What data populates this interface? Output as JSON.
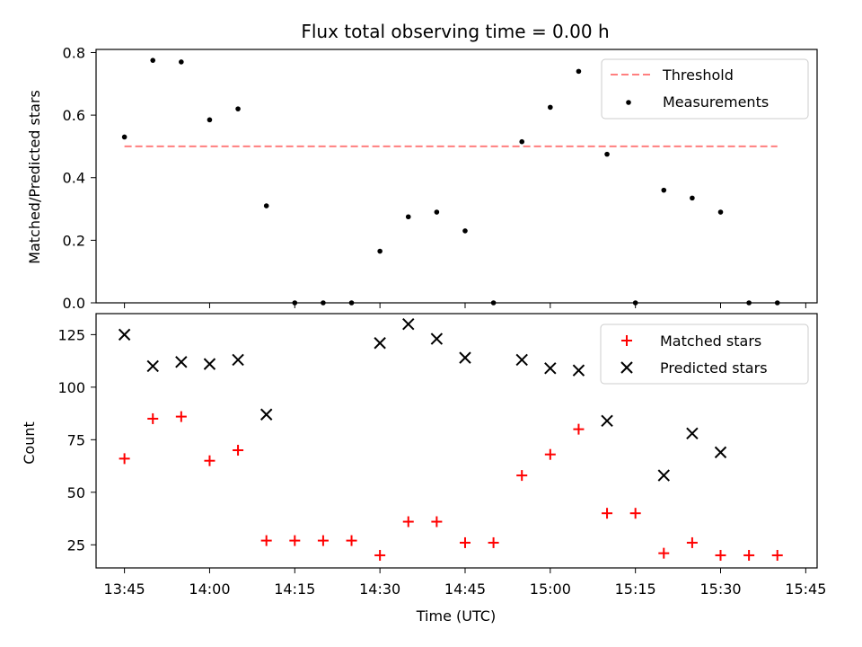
{
  "colors": {
    "threshold": "#ff7f7f",
    "measurements": "#000000",
    "matched": "#ff0000",
    "predicted": "#000000"
  },
  "chart_data": [
    {
      "type": "scatter",
      "title": "Flux total observing time = 0.00 h",
      "xlabel": "",
      "ylabel": "Matched/Predicted stars",
      "xlim": [
        "13:40",
        "15:47"
      ],
      "ylim": [
        0,
        0.81
      ],
      "grid": false,
      "legend_position": "top-right",
      "xtick_labels_visible": false,
      "yticks": [
        0.0,
        0.2,
        0.4,
        0.6,
        0.8
      ],
      "ytick_labels": [
        "0.0",
        "0.2",
        "0.4",
        "0.6",
        "0.8"
      ],
      "series": [
        {
          "name": "Threshold",
          "kind": "line",
          "style": "dashed",
          "color": "#ff7f7f",
          "points": [
            {
              "x": "13:45",
              "y": 0.5
            },
            {
              "x": "15:40",
              "y": 0.5
            }
          ]
        },
        {
          "name": "Measurements",
          "kind": "scatter",
          "marker": "dot",
          "color": "#000000",
          "points": [
            {
              "x": "13:45",
              "y": 0.53
            },
            {
              "x": "13:50",
              "y": 0.775
            },
            {
              "x": "13:55",
              "y": 0.77
            },
            {
              "x": "14:00",
              "y": 0.585
            },
            {
              "x": "14:05",
              "y": 0.62
            },
            {
              "x": "14:10",
              "y": 0.31
            },
            {
              "x": "14:15",
              "y": 0.0
            },
            {
              "x": "14:20",
              "y": 0.0
            },
            {
              "x": "14:25",
              "y": 0.0
            },
            {
              "x": "14:30",
              "y": 0.165
            },
            {
              "x": "14:35",
              "y": 0.275
            },
            {
              "x": "14:40",
              "y": 0.29
            },
            {
              "x": "14:45",
              "y": 0.23
            },
            {
              "x": "14:50",
              "y": 0.0
            },
            {
              "x": "14:55",
              "y": 0.515
            },
            {
              "x": "15:00",
              "y": 0.625
            },
            {
              "x": "15:05",
              "y": 0.74
            },
            {
              "x": "15:10",
              "y": 0.475
            },
            {
              "x": "15:15",
              "y": 0.0
            },
            {
              "x": "15:20",
              "y": 0.36
            },
            {
              "x": "15:25",
              "y": 0.335
            },
            {
              "x": "15:30",
              "y": 0.29
            },
            {
              "x": "15:35",
              "y": 0.0
            },
            {
              "x": "15:40",
              "y": 0.0
            }
          ]
        }
      ]
    },
    {
      "type": "scatter",
      "title": "",
      "xlabel": "Time (UTC)",
      "ylabel": "Count",
      "xlim": [
        "13:40",
        "15:47"
      ],
      "ylim": [
        14,
        135
      ],
      "grid": false,
      "legend_position": "top-right",
      "xticks": [
        "13:45",
        "14:00",
        "14:15",
        "14:30",
        "14:45",
        "15:00",
        "15:15",
        "15:30",
        "15:45"
      ],
      "yticks": [
        25,
        50,
        75,
        100,
        125
      ],
      "ytick_labels": [
        "25",
        "50",
        "75",
        "100",
        "125"
      ],
      "series": [
        {
          "name": "Matched stars",
          "kind": "scatter",
          "marker": "plus",
          "color": "#ff0000",
          "points": [
            {
              "x": "13:45",
              "y": 66
            },
            {
              "x": "13:50",
              "y": 85
            },
            {
              "x": "13:55",
              "y": 86
            },
            {
              "x": "14:00",
              "y": 65
            },
            {
              "x": "14:05",
              "y": 70
            },
            {
              "x": "14:10",
              "y": 27
            },
            {
              "x": "14:15",
              "y": 27
            },
            {
              "x": "14:20",
              "y": 27
            },
            {
              "x": "14:25",
              "y": 27
            },
            {
              "x": "14:30",
              "y": 20
            },
            {
              "x": "14:35",
              "y": 36
            },
            {
              "x": "14:40",
              "y": 36
            },
            {
              "x": "14:45",
              "y": 26
            },
            {
              "x": "14:50",
              "y": 26
            },
            {
              "x": "14:55",
              "y": 58
            },
            {
              "x": "15:00",
              "y": 68
            },
            {
              "x": "15:05",
              "y": 80
            },
            {
              "x": "15:10",
              "y": 40
            },
            {
              "x": "15:15",
              "y": 40
            },
            {
              "x": "15:20",
              "y": 21
            },
            {
              "x": "15:25",
              "y": 26
            },
            {
              "x": "15:30",
              "y": 20
            },
            {
              "x": "15:35",
              "y": 20
            },
            {
              "x": "15:40",
              "y": 20
            }
          ]
        },
        {
          "name": "Predicted stars",
          "kind": "scatter",
          "marker": "x",
          "color": "#000000",
          "points": [
            {
              "x": "13:45",
              "y": 125
            },
            {
              "x": "13:50",
              "y": 110
            },
            {
              "x": "13:55",
              "y": 112
            },
            {
              "x": "14:00",
              "y": 111
            },
            {
              "x": "14:05",
              "y": 113
            },
            {
              "x": "14:10",
              "y": 87
            },
            {
              "x": "14:30",
              "y": 121
            },
            {
              "x": "14:35",
              "y": 130
            },
            {
              "x": "14:40",
              "y": 123
            },
            {
              "x": "14:45",
              "y": 114
            },
            {
              "x": "14:55",
              "y": 113
            },
            {
              "x": "15:00",
              "y": 109
            },
            {
              "x": "15:05",
              "y": 108
            },
            {
              "x": "15:10",
              "y": 84
            },
            {
              "x": "15:20",
              "y": 58
            },
            {
              "x": "15:25",
              "y": 78
            },
            {
              "x": "15:30",
              "y": 69
            }
          ]
        }
      ]
    }
  ]
}
